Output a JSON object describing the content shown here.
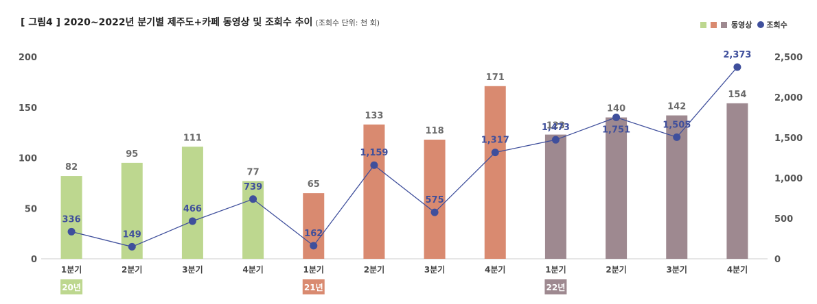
{
  "title": "[ 그림4 ] 2020~2022년 분기별 제주도+카페 동영상 및 조회수 추이",
  "subtitle": "(조회수 단위: 천 회)",
  "legend": {
    "bars": "동영상",
    "line": "조회수"
  },
  "colors": {
    "y2020": "#bdd78f",
    "y2021": "#d98a70",
    "y2022": "#9e8990",
    "line": "#3f4f9c",
    "axis": "#cccccc"
  },
  "chart_data": {
    "type": "bar+line",
    "categories": [
      "1분기",
      "2분기",
      "3분기",
      "4분기",
      "1분기",
      "2분기",
      "3분기",
      "4분기",
      "1분기",
      "2분기",
      "3분기",
      "4분기"
    ],
    "years": [
      {
        "label": "20년",
        "start": 0,
        "colorKey": "y2020"
      },
      {
        "label": "21년",
        "start": 4,
        "colorKey": "y2021"
      },
      {
        "label": "22년",
        "start": 8,
        "colorKey": "y2022"
      }
    ],
    "series": [
      {
        "name": "동영상",
        "type": "bar",
        "axis": "left",
        "values": [
          82,
          95,
          111,
          77,
          65,
          133,
          118,
          171,
          123,
          140,
          142,
          154
        ]
      },
      {
        "name": "조회수",
        "type": "line",
        "axis": "right",
        "values": [
          336,
          149,
          466,
          739,
          162,
          1159,
          575,
          1317,
          1473,
          1751,
          1505,
          2373
        ]
      }
    ],
    "bar_labels": [
      "82",
      "95",
      "111",
      "77",
      "65",
      "133",
      "118",
      "171",
      "123",
      "140",
      "142",
      "154"
    ],
    "line_labels": [
      "336",
      "149",
      "466",
      "739",
      "162",
      "1,159",
      "575",
      "1,317",
      "1,473",
      "1,751",
      "1,505",
      "2,373"
    ],
    "ylim_left": [
      0,
      200
    ],
    "yticks_left": [
      "0",
      "50",
      "100",
      "150",
      "200"
    ],
    "ylim_right": [
      0,
      2500
    ],
    "yticks_right": [
      "0",
      "500",
      "1,000",
      "1,500",
      "2,000",
      "2,500"
    ],
    "grid": false
  }
}
